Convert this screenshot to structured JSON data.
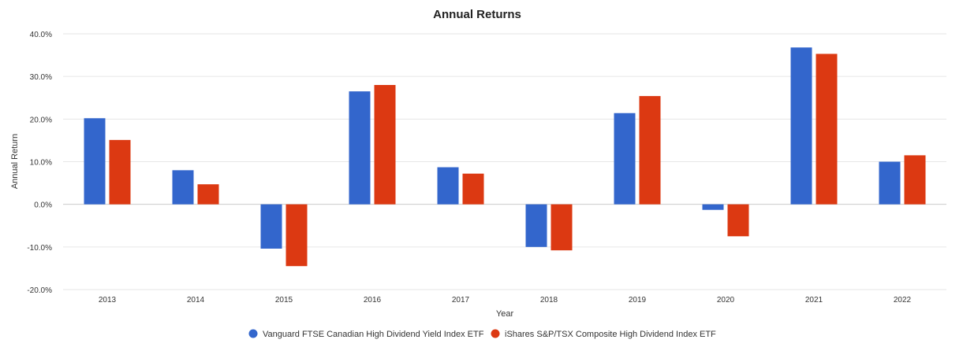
{
  "chart_data": {
    "type": "bar",
    "title": "Annual Returns",
    "xlabel": "Year",
    "ylabel": "Annual Return",
    "categories": [
      "2013",
      "2014",
      "2015",
      "2016",
      "2017",
      "2018",
      "2019",
      "2020",
      "2021",
      "2022"
    ],
    "series": [
      {
        "name": "Vanguard FTSE Canadian High Dividend Yield Index ETF",
        "color": "#3366cc",
        "values": [
          20.2,
          8.0,
          -10.4,
          26.5,
          8.7,
          -10.0,
          21.4,
          -1.3,
          36.8,
          10.0
        ]
      },
      {
        "name": "iShares S&P/TSX Composite High Dividend Index ETF",
        "color": "#dc3912",
        "values": [
          15.1,
          4.7,
          -14.5,
          28.0,
          7.2,
          -10.8,
          25.4,
          -7.5,
          35.3,
          11.5
        ]
      }
    ],
    "ylim": [
      -20,
      40
    ],
    "yticks": [
      "40.0%",
      "30.0%",
      "20.0%",
      "10.0%",
      "0.0%",
      "-10.0%",
      "-20.0%"
    ],
    "ytick_values": [
      40,
      30,
      20,
      10,
      0,
      -10,
      -20
    ],
    "grid": true,
    "legend_position": "bottom"
  }
}
